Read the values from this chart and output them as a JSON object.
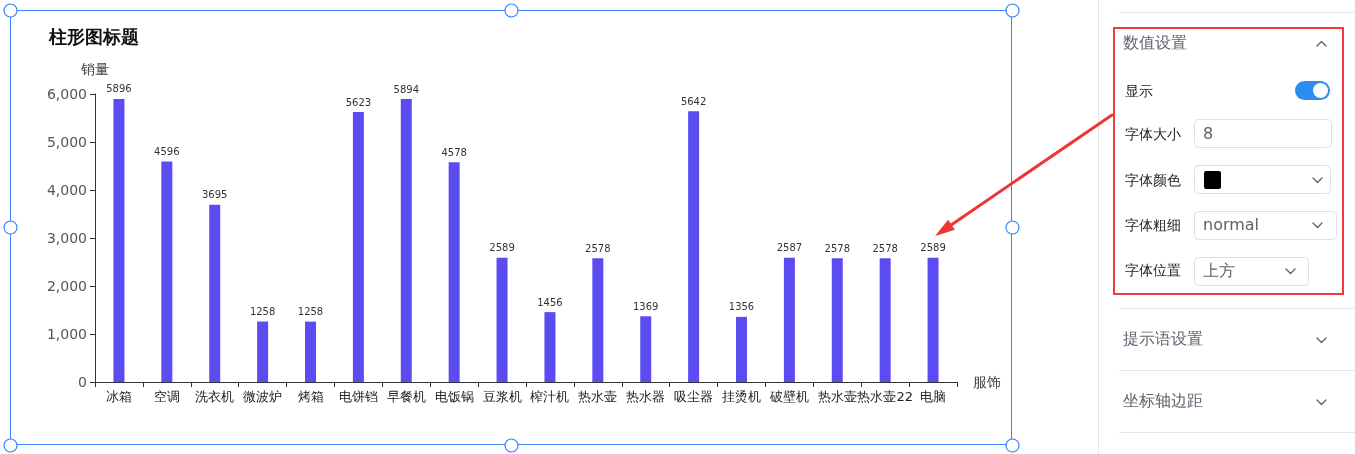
{
  "chart_data": [
    {
      "type": "bar",
      "title": "柱形图标题",
      "xlabel": "服饰",
      "ylabel": "销量",
      "categories": [
        "冰箱",
        "空调",
        "洗衣机",
        "微波炉",
        "烤箱",
        "电饼铛",
        "早餐机",
        "电饭锅",
        "豆浆机",
        "榨汁机",
        "热水壶",
        "热水器",
        "吸尘器",
        "挂烫机",
        "破壁机",
        "热水壶",
        "热水壶22",
        "电脑"
      ],
      "values": [
        5896,
        4596,
        3695,
        1258,
        1258,
        5623,
        5894,
        4578,
        2589,
        1456,
        2578,
        1369,
        5642,
        1356,
        2587,
        2578,
        2578,
        2589
      ],
      "color": "#5b4cf2",
      "ylim": [
        0,
        6000
      ],
      "yticks": [
        0,
        {
          "value": 1000,
          "label": "1,000"
        },
        {
          "value": 2000,
          "label": "2,000"
        },
        {
          "value": 3000,
          "label": "3,000"
        },
        {
          "value": 4000,
          "label": "4,000"
        },
        {
          "value": 5000,
          "label": "5,000"
        },
        {
          "value": 6000,
          "label": "6,000"
        }
      ],
      "grid": false,
      "data_labels": true
    },
    {
      "type": "other",
      "title": "数值设置",
      "annotations": [
        "显示",
        "字体大小",
        "8",
        "字体颜色",
        "字体粗细",
        "normal",
        "字体位置",
        "上方",
        "提示语设置",
        "坐标轴边距"
      ]
    }
  ]
}
